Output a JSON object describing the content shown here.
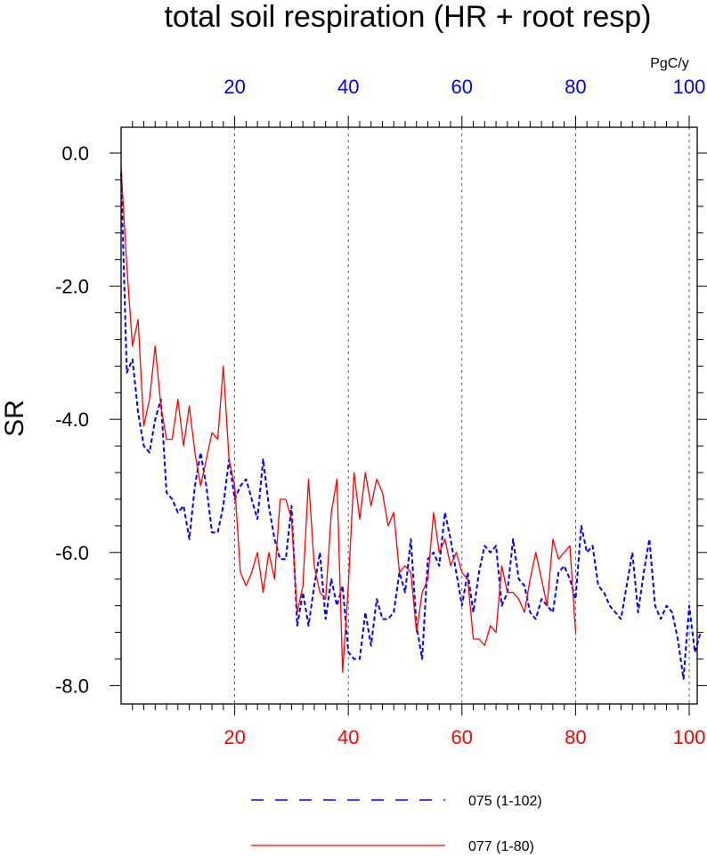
{
  "chart_data": {
    "type": "line",
    "title": "total soil respiration (HR + root resp)",
    "ylabel": "SR",
    "units": "PgC/y",
    "xlim": [
      0,
      102
    ],
    "ylim": [
      -8.3,
      0.4
    ],
    "xticks": [
      20,
      40,
      60,
      80,
      100
    ],
    "xtick_labels": [
      "20",
      "40",
      "60",
      "80",
      "100"
    ],
    "yticks": [
      0,
      -2,
      -4,
      -6,
      -8
    ],
    "ytick_labels": [
      "0.0",
      "-2.0",
      "-4.0",
      "-6.0",
      "-8.0"
    ],
    "top_axis_color": "#0000ff",
    "bottom_axis_color": "#ff0000",
    "grid": "vertical dashed at 20, 40, 60, 80, 100",
    "legend_position": "bottom",
    "series": [
      {
        "name": "075 (1-102)",
        "color": "#0000ff",
        "style": "dashed",
        "x": [
          0,
          1,
          2,
          3,
          4,
          5,
          6,
          7,
          8,
          9,
          10,
          11,
          12,
          13,
          14,
          15,
          16,
          17,
          18,
          19,
          20,
          21,
          22,
          23,
          24,
          25,
          26,
          27,
          28,
          29,
          30,
          31,
          32,
          33,
          34,
          35,
          36,
          37,
          38,
          39,
          40,
          41,
          42,
          43,
          44,
          45,
          46,
          47,
          48,
          49,
          50,
          51,
          52,
          53,
          54,
          55,
          56,
          57,
          58,
          59,
          60,
          61,
          62,
          63,
          64,
          65,
          66,
          67,
          68,
          69,
          70,
          71,
          72,
          73,
          74,
          75,
          76,
          77,
          78,
          79,
          80,
          81,
          82,
          83,
          84,
          85,
          86,
          87,
          88,
          89,
          90,
          91,
          92,
          93,
          94,
          95,
          96,
          97,
          98,
          99,
          100,
          101,
          102
        ],
        "values": [
          -0.3,
          -3.3,
          -3.1,
          -3.9,
          -4.4,
          -4.5,
          -4.0,
          -3.7,
          -5.1,
          -5.2,
          -5.4,
          -5.3,
          -5.8,
          -5.0,
          -4.5,
          -5.0,
          -5.7,
          -5.7,
          -5.3,
          -4.6,
          -5.2,
          -5.0,
          -4.9,
          -5.2,
          -5.5,
          -4.6,
          -5.3,
          -5.8,
          -6.1,
          -6.1,
          -5.3,
          -7.1,
          -6.6,
          -7.1,
          -6.5,
          -6.0,
          -7.0,
          -6.4,
          -6.8,
          -6.5,
          -7.5,
          -7.6,
          -7.6,
          -6.9,
          -7.4,
          -6.7,
          -7.0,
          -7.0,
          -6.9,
          -6.3,
          -6.6,
          -5.8,
          -7.1,
          -7.6,
          -6.1,
          -6.0,
          -6.2,
          -5.4,
          -5.8,
          -6.3,
          -6.8,
          -6.3,
          -6.9,
          -6.3,
          -5.9,
          -6.0,
          -5.9,
          -6.8,
          -6.6,
          -5.8,
          -6.4,
          -6.5,
          -6.9,
          -7.0,
          -6.7,
          -6.8,
          -6.9,
          -6.3,
          -6.2,
          -6.4,
          -6.7,
          -5.6,
          -6.0,
          -5.9,
          -6.5,
          -6.6,
          -6.8,
          -6.9,
          -7.0,
          -6.5,
          -6.0,
          -6.9,
          -6.3,
          -5.8,
          -6.8,
          -7.0,
          -6.8,
          -6.9,
          -7.3,
          -7.9,
          -6.8,
          -7.5,
          -7.2
        ]
      },
      {
        "name": "077 (1-80)",
        "color": "#ff0000",
        "style": "solid",
        "x": [
          0,
          1,
          2,
          3,
          4,
          5,
          6,
          7,
          8,
          9,
          10,
          11,
          12,
          13,
          14,
          15,
          16,
          17,
          18,
          19,
          20,
          21,
          22,
          23,
          24,
          25,
          26,
          27,
          28,
          29,
          30,
          31,
          32,
          33,
          34,
          35,
          36,
          37,
          38,
          39,
          40,
          41,
          42,
          43,
          44,
          45,
          46,
          47,
          48,
          49,
          50,
          51,
          52,
          53,
          54,
          55,
          56,
          57,
          58,
          59,
          60,
          61,
          62,
          63,
          64,
          65,
          66,
          67,
          68,
          69,
          70,
          71,
          72,
          73,
          74,
          75,
          76,
          77,
          78,
          79,
          80
        ],
        "values": [
          -0.2,
          -1.7,
          -2.9,
          -2.5,
          -4.1,
          -3.7,
          -2.9,
          -3.8,
          -4.3,
          -4.3,
          -3.7,
          -4.4,
          -3.8,
          -4.5,
          -5.0,
          -4.6,
          -4.2,
          -4.3,
          -3.2,
          -4.6,
          -5.0,
          -6.3,
          -6.5,
          -6.3,
          -6.0,
          -6.6,
          -6.0,
          -6.4,
          -5.2,
          -5.2,
          -5.5,
          -6.9,
          -6.5,
          -4.9,
          -6.2,
          -6.6,
          -6.7,
          -5.4,
          -4.9,
          -7.8,
          -6.5,
          -4.8,
          -5.5,
          -4.8,
          -5.3,
          -4.9,
          -5.1,
          -5.6,
          -5.4,
          -6.3,
          -6.2,
          -6.3,
          -7.2,
          -6.6,
          -6.4,
          -5.4,
          -6.0,
          -5.8,
          -6.2,
          -6.0,
          -6.3,
          -6.4,
          -7.3,
          -7.3,
          -7.4,
          -7.1,
          -7.2,
          -6.2,
          -6.6,
          -6.6,
          -6.7,
          -6.9,
          -6.4,
          -6.0,
          -6.4,
          -6.8,
          -5.8,
          -6.1,
          -6.0,
          -5.9,
          -7.2
        ]
      }
    ]
  }
}
